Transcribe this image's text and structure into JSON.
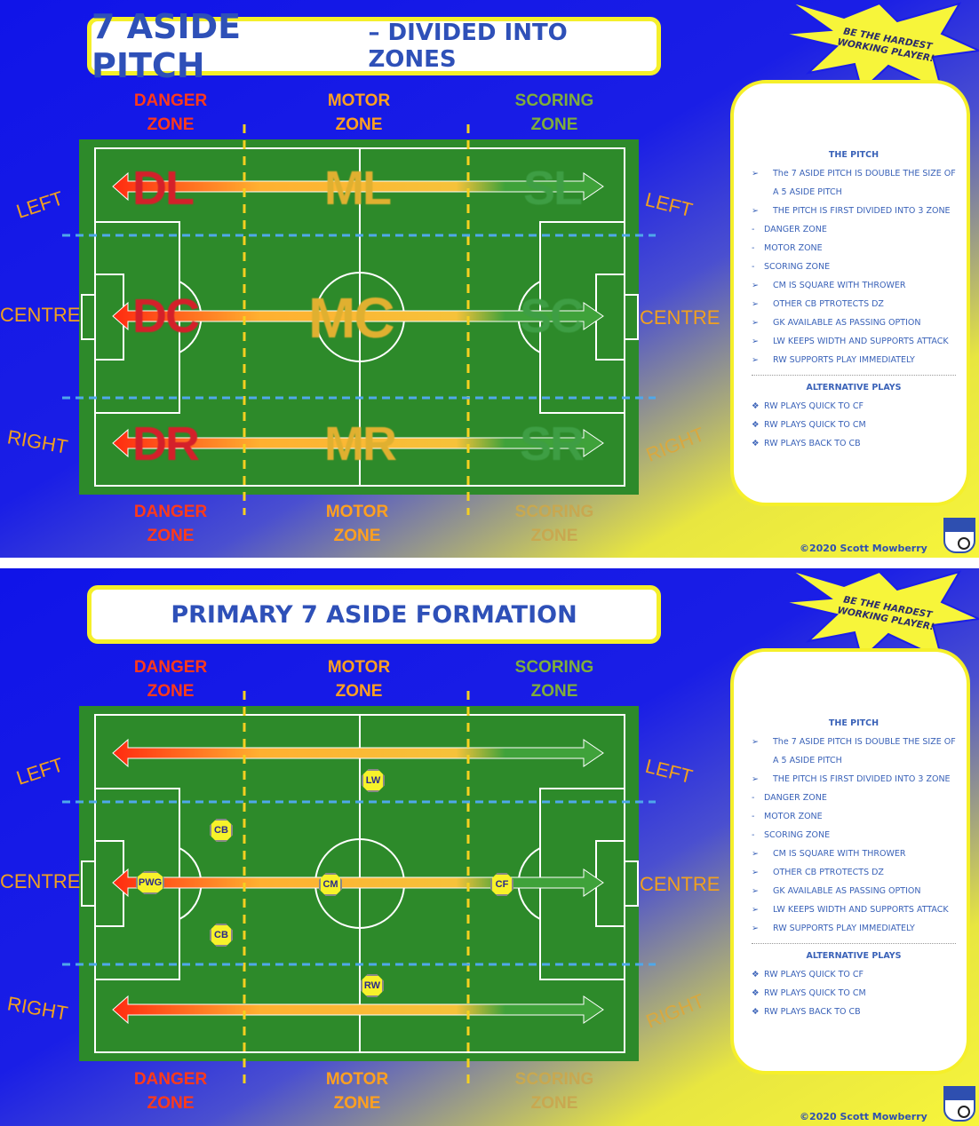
{
  "slides": [
    {
      "title_main": "7 ASIDE PITCH",
      "title_sub": "– DIVIDED INTO ZONES",
      "zones_top": [
        {
          "line1": "DANGER",
          "line2": "ZONE"
        },
        {
          "line1": "MOTOR",
          "line2": "ZONE"
        },
        {
          "line1": "SCORING",
          "line2": "ZONE"
        }
      ],
      "zones_bottom": [
        {
          "line1": "DANGER",
          "line2": "ZONE"
        },
        {
          "line1": "MOTOR",
          "line2": "ZONE"
        },
        {
          "line1": "SCORING",
          "line2": "ZONE"
        }
      ],
      "sides": {
        "left": "LEFT",
        "centre": "CENTRE",
        "right": "RIGHT"
      },
      "zone_tags": [
        "DL",
        "ML",
        "SL",
        "DC",
        "MC",
        "SC",
        "DR",
        "MR",
        "SR"
      ]
    },
    {
      "title_main": "PRIMARY 7 ASIDE FORMATION",
      "title_sub": "",
      "zones_top": [
        {
          "line1": "DANGER",
          "line2": "ZONE"
        },
        {
          "line1": "MOTOR",
          "line2": "ZONE"
        },
        {
          "line1": "SCORING",
          "line2": "ZONE"
        }
      ],
      "zones_bottom": [
        {
          "line1": "DANGER",
          "line2": "ZONE"
        },
        {
          "line1": "MOTOR",
          "line2": "ZONE"
        },
        {
          "line1": "SCORING",
          "line2": "ZONE"
        }
      ],
      "sides": {
        "left": "LEFT",
        "centre": "CENTRE",
        "right": "RIGHT"
      },
      "players": [
        "LW",
        "CB",
        "PWG",
        "CM",
        "CF",
        "CB",
        "RW"
      ]
    }
  ],
  "panel": {
    "heading": "THE PITCH",
    "items": [
      {
        "mark": "➢",
        "text": "The 7 ASIDE PITCH IS DOUBLE THE SIZE OF"
      },
      {
        "mark": "",
        "text": "A 5 ASIDE PITCH"
      },
      {
        "mark": "➢",
        "text": "THE PITCH IS FIRST DIVIDED INTO 3 ZONE"
      },
      {
        "mark": "-",
        "text": "DANGER ZONE"
      },
      {
        "mark": "-",
        "text": "MOTOR ZONE"
      },
      {
        "mark": "-",
        "text": "SCORING ZONE"
      },
      {
        "mark": "➢",
        "text": "CM IS SQUARE WITH THROWER"
      },
      {
        "mark": "➢",
        "text": "OTHER CB PTROTECTS DZ"
      },
      {
        "mark": "➢",
        "text": "GK AVAILABLE AS PASSING OPTION"
      },
      {
        "mark": "➢",
        "text": "LW KEEPS WIDTH AND SUPPORTS ATTACK"
      },
      {
        "mark": "➢",
        "text": "RW SUPPORTS PLAY IMMEDIATELY"
      }
    ],
    "alt_heading": "ALTERNATIVE PLAYS",
    "alt_items": [
      {
        "mark": "❖",
        "text": "RW PLAYS QUICK TO CF"
      },
      {
        "mark": "❖",
        "text": "RW PLAYS QUICK TO CM"
      },
      {
        "mark": "❖",
        "text": "RW PLAYS BACK TO CB"
      }
    ]
  },
  "slogan": "BE THE HARDEST WORKING PLAYER!",
  "copyright": "©2020 Scott Mowberry",
  "colors": {
    "blue": "#1a1ee6",
    "yellow": "#f5ef2a",
    "pitch": "#2d8a2a",
    "danger": "#ff3a1a",
    "motor": "#ffa020",
    "scoring": "#7fae3a"
  }
}
